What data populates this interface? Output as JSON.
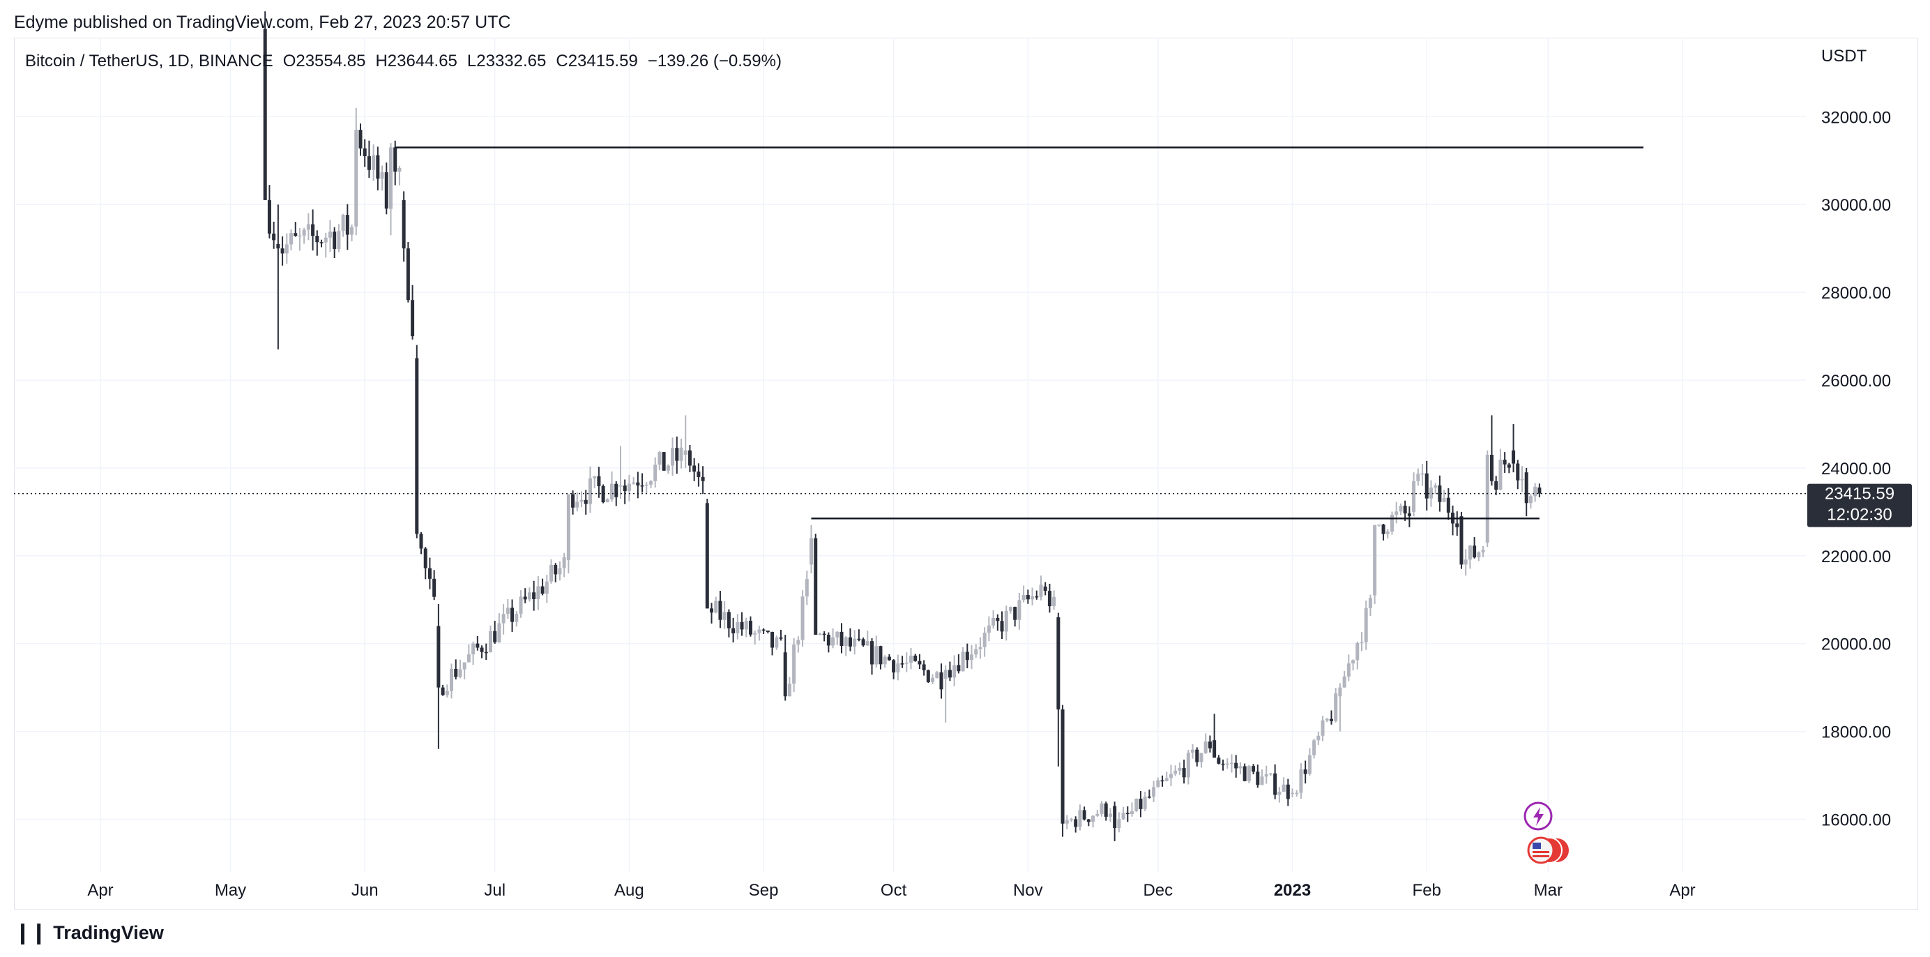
{
  "header": {
    "published": "Edyme published on TradingView.com, Feb 27, 2023 20:57 UTC",
    "symbol": "Bitcoin / TetherUS, 1D, BINANCE",
    "open": "O23554.85",
    "high": "H23644.65",
    "low": "L23332.65",
    "close": "C23415.59",
    "change": "−139.26 (−0.59%)"
  },
  "footer": {
    "brand": "TradingView",
    "logo_icon": "tradingview-logo-icon"
  },
  "colors": {
    "up": "#b2b5be",
    "down": "#2a2e39",
    "grid": "#f0f3fa",
    "line": "#131722",
    "tag_bg": "#2a2e39"
  },
  "price_tag": {
    "price": "23415.59",
    "countdown": "12:02:30"
  },
  "events": [
    {
      "icon": "lightning-icon",
      "color": "#9c27b0"
    },
    {
      "icon": "us-flag-icon",
      "color": "#e53935"
    }
  ],
  "chart_data": {
    "type": "candlestick",
    "currency": "USDT",
    "x_labels": [
      "Apr",
      "May",
      "Jun",
      "Jul",
      "Aug",
      "Sep",
      "Oct",
      "Nov",
      "Dec",
      "2023",
      "Feb",
      "Mar",
      "Apr"
    ],
    "x_label_dates": [
      "2022-04-01",
      "2022-05-01",
      "2022-06-01",
      "2022-07-01",
      "2022-08-01",
      "2022-09-01",
      "2022-10-01",
      "2022-11-01",
      "2022-12-01",
      "2023-01-01",
      "2023-02-01",
      "2023-03-01",
      "2023-04-01"
    ],
    "y_ticks": [
      "16000.00",
      "18000.00",
      "20000.00",
      "22000.00",
      "24000.00",
      "26000.00",
      "28000.00",
      "30000.00",
      "32000.00"
    ],
    "ylim": [
      14800,
      33800
    ],
    "last_price": 23415.59,
    "horizontal_lines": [
      {
        "from": "2022-06-08",
        "to": "2023-03-23",
        "price": 31300
      },
      {
        "from": "2022-09-12",
        "to": "2023-02-27",
        "price": 22850
      }
    ],
    "ohlc_anchors": [
      {
        "date": "2022-05-09",
        "open": 34000,
        "high": 34400,
        "low": 30100,
        "close": 30100
      },
      {
        "date": "2022-05-12",
        "open": 29100,
        "high": 30000,
        "low": 26700,
        "close": 29000
      },
      {
        "date": "2022-05-30",
        "open": 29500,
        "high": 32200,
        "low": 29300,
        "close": 31700
      },
      {
        "date": "2022-06-07",
        "open": 29900,
        "high": 31400,
        "low": 29300,
        "close": 31300
      },
      {
        "date": "2022-06-10",
        "open": 30100,
        "high": 30300,
        "low": 28700,
        "close": 29000
      },
      {
        "date": "2022-06-13",
        "open": 26500,
        "high": 26800,
        "low": 22400,
        "close": 22500
      },
      {
        "date": "2022-06-18",
        "open": 20400,
        "high": 20900,
        "low": 17600,
        "close": 19000
      },
      {
        "date": "2022-07-18",
        "open": 21900,
        "high": 23400,
        "low": 21600,
        "close": 23400
      },
      {
        "date": "2022-07-30",
        "open": 23600,
        "high": 24500,
        "low": 23300,
        "close": 23600
      },
      {
        "date": "2022-08-14",
        "open": 24300,
        "high": 25200,
        "low": 24000,
        "close": 24400
      },
      {
        "date": "2022-08-19",
        "open": 23200,
        "high": 23300,
        "low": 20800,
        "close": 20800
      },
      {
        "date": "2022-09-06",
        "open": 19800,
        "high": 20200,
        "low": 18700,
        "close": 18800
      },
      {
        "date": "2022-09-12",
        "open": 21800,
        "high": 22700,
        "low": 21600,
        "close": 22400
      },
      {
        "date": "2022-09-13",
        "open": 22400,
        "high": 22500,
        "low": 20200,
        "close": 20200
      },
      {
        "date": "2022-10-13",
        "open": 19200,
        "high": 19500,
        "low": 18200,
        "close": 19400
      },
      {
        "date": "2022-11-05",
        "open": 21300,
        "high": 21400,
        "low": 21100,
        "close": 21200
      },
      {
        "date": "2022-11-08",
        "open": 20600,
        "high": 20700,
        "low": 17200,
        "close": 18500
      },
      {
        "date": "2022-11-09",
        "open": 18500,
        "high": 18600,
        "low": 15600,
        "close": 15900
      },
      {
        "date": "2022-11-21",
        "open": 16300,
        "high": 16400,
        "low": 15500,
        "close": 15800
      },
      {
        "date": "2022-12-14",
        "open": 17800,
        "high": 18400,
        "low": 17600,
        "close": 17400
      },
      {
        "date": "2023-01-01",
        "open": 16600,
        "high": 16700,
        "low": 16500,
        "close": 16600
      },
      {
        "date": "2023-01-12",
        "open": 18800,
        "high": 19100,
        "low": 18000,
        "close": 19000
      },
      {
        "date": "2023-01-20",
        "open": 21100,
        "high": 22700,
        "low": 20900,
        "close": 22700
      },
      {
        "date": "2023-01-29",
        "open": 23000,
        "high": 23900,
        "low": 22900,
        "close": 23700
      },
      {
        "date": "2023-02-09",
        "open": 22900,
        "high": 23000,
        "low": 21700,
        "close": 21800
      },
      {
        "date": "2023-02-15",
        "open": 22300,
        "high": 24400,
        "low": 22200,
        "close": 24300
      },
      {
        "date": "2023-02-16",
        "open": 24300,
        "high": 25200,
        "low": 23600,
        "close": 23700
      },
      {
        "date": "2023-02-21",
        "open": 24400,
        "high": 25000,
        "low": 23900,
        "close": 24100
      },
      {
        "date": "2023-02-24",
        "open": 23900,
        "high": 24000,
        "low": 22900,
        "close": 23200
      },
      {
        "date": "2023-02-27",
        "open": 23554.85,
        "high": 23644.65,
        "low": 23332.65,
        "close": 23415.59
      }
    ]
  }
}
